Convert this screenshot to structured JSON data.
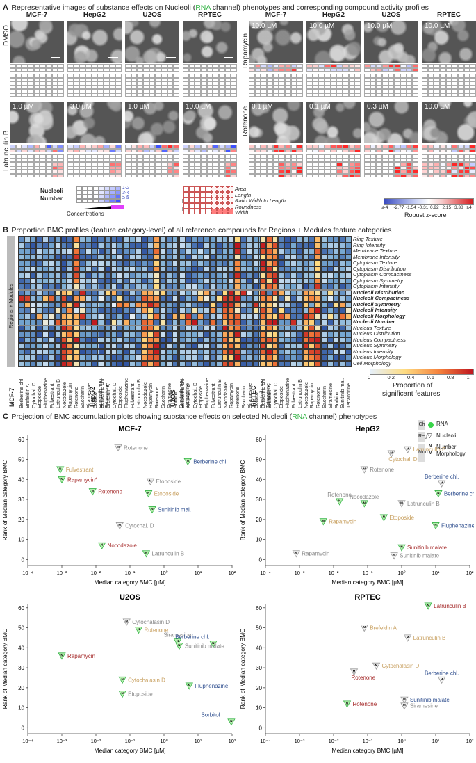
{
  "panel_a": {
    "letter": "A",
    "title_pre": "Representative images of substance effects on Nucleoli (",
    "title_rna": "RNA",
    "title_post": " channel) phenotypes and corresponding compound activity profiles",
    "cell_lines": [
      "MCF-7",
      "HepG2",
      "U2OS",
      "RPTEC"
    ],
    "rows": [
      {
        "label": "DMSO",
        "concs": [
          "",
          "",
          "",
          ""
        ]
      },
      {
        "label": "Rapamycin",
        "concs": [
          "10.0 µM",
          "10.0 µM",
          "10.0 µM",
          "10.0 µM"
        ]
      },
      {
        "label": "Latrunculin B",
        "concs": [
          "1.0 µM",
          "3.0 µM",
          "1.0 µM",
          "10.0 µM"
        ]
      },
      {
        "label": "Rotenone",
        "concs": [
          "0.1 µM",
          "0.1 µM",
          "0.3 µM",
          "10.0 µM"
        ]
      }
    ],
    "legend_number": {
      "title1": "Nucleoli",
      "title2": "Number",
      "items": [
        "1-2",
        "3-4",
        "≥ 5"
      ],
      "concentrations": "Concentrations"
    },
    "legend_morph": {
      "title1": "Nucleoli",
      "title2": "Morphology",
      "items": [
        "Area",
        "Length",
        "Ratio Width to Length",
        "Roundness",
        "Width"
      ]
    },
    "colorbar": {
      "ticks": [
        "≤-4",
        "-2.77",
        "-1.54",
        "-0.31",
        "0.92",
        "2.15",
        "3.38",
        "≥4"
      ],
      "label": "Robust z-score",
      "low": "#3b4cc0",
      "mid": "#ffffff",
      "high": "#d7191c"
    }
  },
  "panel_b": {
    "letter": "B",
    "title": "Proportion BMC profiles (feature category-level) of all reference compounds for Regions + Modules feature categories",
    "side_label": "Regions + Modules",
    "cell_lines": [
      "MCF-7",
      "HepG2",
      "U2OS",
      "RPTEC"
    ],
    "compounds": [
      "Berberine chl.",
      "Brefeldin A",
      "Cytochal. D",
      "Etoposide",
      "Fluphenazine",
      "Fulvestrant",
      "Latrunculin B",
      "Nocodazole",
      "Rapamycin",
      "Rotenone",
      "Saccharin",
      "Siramesine",
      "Sorbitol",
      "Sunitinib mal.",
      "Tetrandrine"
    ],
    "features": [
      {
        "name": "Ring Texture",
        "bold": false
      },
      {
        "name": "Ring Intensity",
        "bold": false
      },
      {
        "name": "Membrane Texture",
        "bold": false
      },
      {
        "name": "Membrane Intensity",
        "bold": false
      },
      {
        "name": "Cytoplasm Texture",
        "bold": false
      },
      {
        "name": "Cytoplasm Distribution",
        "bold": false
      },
      {
        "name": "Cytoplasm Compactness",
        "bold": false
      },
      {
        "name": "Cytoplasm Symmetry",
        "bold": false
      },
      {
        "name": "Cytoplasm Intensity",
        "bold": false
      },
      {
        "name": "Nucleoli Distribution",
        "bold": true
      },
      {
        "name": "Nucleoli Compactness",
        "bold": true
      },
      {
        "name": "Nucleoli Symmetry",
        "bold": true
      },
      {
        "name": "Nucleoli Intensity",
        "bold": true
      },
      {
        "name": "Nucleoli Morphology",
        "bold": true
      },
      {
        "name": "Nucleoli Number",
        "bold": true
      },
      {
        "name": "Nucleus Texture",
        "bold": false
      },
      {
        "name": "Nucleus Distribution",
        "bold": false
      },
      {
        "name": "Nucleus Compactness",
        "bold": false
      },
      {
        "name": "Nucleus Symmetry",
        "bold": false
      },
      {
        "name": "Nucleus Intensity",
        "bold": false
      },
      {
        "name": "Nucleus Morphology",
        "bold": false
      },
      {
        "name": "Cell Morphology",
        "bold": false
      }
    ],
    "colorbar": {
      "ticks": [
        "0",
        "0.2",
        "0.4",
        "0.6",
        "0.8",
        "1"
      ],
      "label1": "Proportion of",
      "label2": "significant features"
    }
  },
  "panel_c": {
    "letter": "C",
    "title_pre": "Projection of BMC accumulation plots showing substance effects on selected Nucleoli (",
    "title_rna": "RNA",
    "title_post": " channel) phenotypes",
    "legend": {
      "ch": "Ch",
      "rna": "RNA",
      "reg": "Reg",
      "nucleoli": "Nucleoli",
      "mod": "Mod",
      "n_key": "N",
      "number": "Number",
      "m_key": "M",
      "morphology": "Morphology"
    }
  },
  "chart_data": [
    {
      "type": "scatter",
      "title": "MCF-7",
      "xlabel": "Median category BMC [µM]",
      "ylabel": "Rank of Median category BMC",
      "xscale": "log",
      "xlim": [
        0.0001,
        100
      ],
      "ylim": [
        -3,
        62
      ],
      "xticks": [
        "10⁻⁴",
        "10⁻³",
        "10⁻²",
        "10⁻¹",
        "10⁰",
        "10¹",
        "10²"
      ],
      "yticks": [
        0,
        10,
        20,
        30,
        40,
        50,
        60
      ],
      "points": [
        {
          "x": 0.045,
          "y": 56,
          "mod": "M",
          "label": "Rotenone",
          "color": "#888888",
          "side": "right"
        },
        {
          "x": 5.0,
          "y": 49,
          "mod": "N",
          "label": "Berberine chl.",
          "color": "#2f4f8f",
          "side": "right"
        },
        {
          "x": 0.0009,
          "y": 45,
          "mod": "N",
          "label": "Fulvestrant",
          "color": "#c8a060",
          "side": "right"
        },
        {
          "x": 0.001,
          "y": 40,
          "mod": "N",
          "label": "Rapamycin*",
          "color": "#a52a2a",
          "side": "right"
        },
        {
          "x": 0.4,
          "y": 39,
          "mod": "M",
          "label": "Etoposide",
          "color": "#888888",
          "side": "right"
        },
        {
          "x": 0.008,
          "y": 34,
          "mod": "N",
          "label": "Rotenone",
          "color": "#a52a2a",
          "side": "right"
        },
        {
          "x": 0.35,
          "y": 33,
          "mod": "N",
          "label": "Etoposide",
          "color": "#c8a060",
          "side": "right"
        },
        {
          "x": 0.45,
          "y": 25,
          "mod": "N",
          "label": "Sunitinib mal.",
          "color": "#2f4f8f",
          "side": "right"
        },
        {
          "x": 0.05,
          "y": 17,
          "mod": "M",
          "label": "Cytochal. D",
          "color": "#888888",
          "side": "right"
        },
        {
          "x": 0.015,
          "y": 7,
          "mod": "N",
          "label": "Nocodazole",
          "color": "#a52a2a",
          "side": "right"
        },
        {
          "x": 0.3,
          "y": 3,
          "mod": "N",
          "label": "Latrunculin B",
          "color": "#888888",
          "side": "right"
        }
      ]
    },
    {
      "type": "scatter",
      "title": "HepG2",
      "xlabel": "Median category BMC [µM]",
      "ylabel": "Rank of Median category BMC",
      "xscale": "log",
      "xlim": [
        0.0001,
        100
      ],
      "ylim": [
        -3,
        62
      ],
      "xticks": [
        "10⁻⁴",
        "10⁻³",
        "10⁻²",
        "10⁻¹",
        "10⁰",
        "10¹",
        "10²"
      ],
      "yticks": [
        0,
        10,
        20,
        30,
        40,
        50,
        60
      ],
      "points": [
        {
          "x": 1.5,
          "y": 55,
          "mod": "M",
          "label": "Latrunculin B",
          "color": "#c8a060",
          "side": "right"
        },
        {
          "x": 0.5,
          "y": 53,
          "mod": "M",
          "label": "Cytochal. D",
          "color": "#c8a060",
          "side": "belowright"
        },
        {
          "x": 0.08,
          "y": 45,
          "mod": "M",
          "label": "Rotenone",
          "color": "#888888",
          "side": "right"
        },
        {
          "x": 15,
          "y": 38,
          "mod": "M",
          "label": "Berberine chl.",
          "color": "#2f4f8f",
          "side": "above"
        },
        {
          "x": 12,
          "y": 33,
          "mod": "N",
          "label": "Berberine chl.",
          "color": "#2f4f8f",
          "side": "right"
        },
        {
          "x": 0.015,
          "y": 29,
          "mod": "N",
          "label": "Rotenone",
          "color": "#888888",
          "side": "above"
        },
        {
          "x": 0.08,
          "y": 28,
          "mod": "N",
          "label": "Nocodazole",
          "color": "#888888",
          "side": "above"
        },
        {
          "x": 1.0,
          "y": 28,
          "mod": "M",
          "label": "Latrunculin B",
          "color": "#888888",
          "side": "right"
        },
        {
          "x": 0.3,
          "y": 21,
          "mod": "N",
          "label": "Etoposide",
          "color": "#c8a060",
          "side": "right"
        },
        {
          "x": 0.005,
          "y": 19,
          "mod": "N",
          "label": "Rapamycin",
          "color": "#c8a060",
          "side": "right"
        },
        {
          "x": 10,
          "y": 17,
          "mod": "N",
          "label": "Fluphenazine",
          "color": "#2f4f8f",
          "side": "right"
        },
        {
          "x": 1.0,
          "y": 6,
          "mod": "N",
          "label": "Sunitinib malate",
          "color": "#a52a2a",
          "side": "right"
        },
        {
          "x": 0.0008,
          "y": 3,
          "mod": "M",
          "label": "Rapamycin",
          "color": "#888888",
          "side": "right"
        },
        {
          "x": 0.6,
          "y": 2,
          "mod": "M",
          "label": "Sunitinib malate",
          "color": "#888888",
          "side": "right"
        }
      ]
    },
    {
      "type": "scatter",
      "title": "U2OS",
      "xlabel": "Median category BMC [µM]",
      "ylabel": "Rank of Median category BMC",
      "xscale": "log",
      "xlim": [
        0.0001,
        100
      ],
      "ylim": [
        -3,
        62
      ],
      "xticks": [
        "10⁻⁴",
        "10⁻³",
        "10⁻²",
        "10⁻¹",
        "10⁰",
        "10¹",
        "10²"
      ],
      "yticks": [
        0,
        10,
        20,
        30,
        40,
        50,
        60
      ],
      "points": [
        {
          "x": 0.08,
          "y": 53,
          "mod": "M",
          "label": "Cytochalasin D",
          "color": "#888888",
          "side": "right"
        },
        {
          "x": 0.18,
          "y": 49,
          "mod": "N",
          "label": "Rotenone",
          "color": "#c8a060",
          "side": "right"
        },
        {
          "x": 2.5,
          "y": 43,
          "mod": "N",
          "label": "Siramesine",
          "color": "#888888",
          "side": "above"
        },
        {
          "x": 28,
          "y": 42,
          "mod": "N",
          "label": "Berberine chl.",
          "color": "#2f4f8f",
          "side": "above"
        },
        {
          "x": 2.8,
          "y": 41,
          "mod": "N",
          "label": "Sunitinib malate",
          "color": "#888888",
          "side": "right"
        },
        {
          "x": 0.001,
          "y": 36,
          "mod": "N",
          "label": "Rapamycin",
          "color": "#a52a2a",
          "side": "right"
        },
        {
          "x": 0.06,
          "y": 24,
          "mod": "N",
          "label": "Cytochalasin D",
          "color": "#c8a060",
          "side": "right"
        },
        {
          "x": 5.5,
          "y": 21,
          "mod": "N",
          "label": "Fluphenazine",
          "color": "#2f4f8f",
          "side": "right"
        },
        {
          "x": 0.06,
          "y": 17,
          "mod": "N",
          "label": "Etoposide",
          "color": "#888888",
          "side": "right"
        },
        {
          "x": 95,
          "y": 3,
          "mod": "N",
          "label": "Sorbitol",
          "color": "#2f4f8f",
          "side": "above"
        }
      ]
    },
    {
      "type": "scatter",
      "title": "RPTEC",
      "xlabel": "Median category BMC [µM]",
      "ylabel": "Rank of Median category BMC",
      "xscale": "log",
      "xlim": [
        0.0001,
        100
      ],
      "ylim": [
        -3,
        62
      ],
      "xticks": [
        "10⁻⁴",
        "10⁻³",
        "10⁻²",
        "10⁻¹",
        "10⁰",
        "10¹",
        "10²"
      ],
      "yticks": [
        0,
        10,
        20,
        30,
        40,
        50,
        60
      ],
      "points": [
        {
          "x": 6,
          "y": 61,
          "mod": "N",
          "label": "Latrunculin B",
          "color": "#a52a2a",
          "side": "right"
        },
        {
          "x": 0.08,
          "y": 50,
          "mod": "M",
          "label": "Brefeldin A",
          "color": "#c8a060",
          "side": "right"
        },
        {
          "x": 1.5,
          "y": 45,
          "mod": "M",
          "label": "Latrunculin B",
          "color": "#c8a060",
          "side": "right"
        },
        {
          "x": 0.18,
          "y": 31,
          "mod": "M",
          "label": "Cytochalasin D",
          "color": "#c8a060",
          "side": "right"
        },
        {
          "x": 0.04,
          "y": 28,
          "mod": "M",
          "label": "Rotenone",
          "color": "#a52a2a",
          "side": "belowright"
        },
        {
          "x": 15,
          "y": 24,
          "mod": "M",
          "label": "Berberine chl.",
          "color": "#2f4f8f",
          "side": "above"
        },
        {
          "x": 0.025,
          "y": 12,
          "mod": "N",
          "label": "Rotenone",
          "color": "#a52a2a",
          "side": "right"
        },
        {
          "x": 1.2,
          "y": 14,
          "mod": "M",
          "label": "Sunitinib malate",
          "color": "#2f4f8f",
          "side": "right"
        },
        {
          "x": 1.2,
          "y": 11,
          "mod": "M",
          "label": "Siramesine",
          "color": "#888888",
          "side": "right"
        }
      ]
    }
  ]
}
